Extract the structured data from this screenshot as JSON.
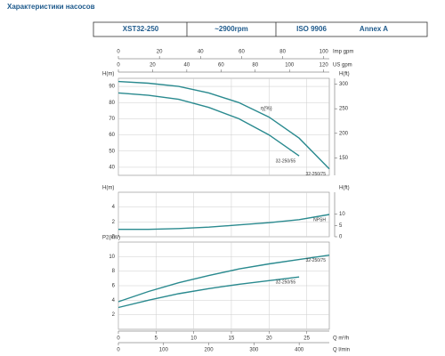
{
  "header": {
    "title": "Характеристики насосов",
    "model": "XST32-250",
    "speed": "~2900rpm",
    "standard": "ISO 9906",
    "annex": "Annex A"
  },
  "q_axes": [
    {
      "label": "Imp gpm",
      "lim": [
        0,
        102.7
      ],
      "ticks": [
        0,
        20,
        40,
        60,
        80,
        100
      ]
    },
    {
      "label": "US gpm",
      "lim": [
        0,
        123.3
      ],
      "ticks": [
        0,
        20,
        40,
        60,
        80,
        100,
        120
      ]
    },
    {
      "label": "Q m³/h",
      "lim": [
        0,
        28
      ],
      "ticks": [
        0,
        5,
        10,
        15,
        20,
        25
      ]
    },
    {
      "label": "Q l/min",
      "lim": [
        0,
        466.7
      ],
      "ticks": [
        0,
        100,
        200,
        300,
        400
      ]
    }
  ],
  "chart_data": [
    {
      "type": "line",
      "ylabel": "H(m)",
      "ylim": [
        35,
        95
      ],
      "yticks": [
        40,
        50,
        60,
        70,
        80,
        90
      ],
      "y2label": "H(ft)",
      "y2lim": [
        114.8,
        311.7
      ],
      "y2ticks": [
        150,
        200,
        250,
        300
      ],
      "annotation": "η(%)",
      "x": [
        0,
        4,
        8,
        12,
        16,
        20,
        24,
        28
      ],
      "series": [
        {
          "name": "32-250/75",
          "color": "#2a8a8f",
          "values": [
            93,
            92,
            90,
            86,
            80,
            71,
            58,
            39
          ]
        },
        {
          "name": "32-250/55",
          "color": "#2a8a8f",
          "values": [
            86,
            84.5,
            82,
            77,
            70,
            60,
            47,
            null
          ]
        }
      ]
    },
    {
      "type": "line",
      "ylabel": "H(m)",
      "ylim": [
        0,
        6
      ],
      "yticks": [
        0,
        2,
        4
      ],
      "y2label": "H(ft)",
      "y2lim": [
        0,
        19.7
      ],
      "y2ticks": [
        0,
        5,
        10
      ],
      "x": [
        0,
        4,
        8,
        12,
        16,
        20,
        24,
        28
      ],
      "series": [
        {
          "name": "NPSH",
          "color": "#2a8a8f",
          "values": [
            1,
            1,
            1.1,
            1.3,
            1.6,
            1.9,
            2.3,
            3
          ]
        }
      ]
    },
    {
      "type": "line",
      "ylabel": "P2(kW)",
      "ylim": [
        0,
        12
      ],
      "yticks": [
        2,
        4,
        6,
        8,
        10
      ],
      "x": [
        0,
        4,
        8,
        12,
        16,
        20,
        24,
        28
      ],
      "series": [
        {
          "name": "32-250/75",
          "color": "#2a8a8f",
          "values": [
            3.8,
            5.2,
            6.4,
            7.4,
            8.3,
            9,
            9.6,
            10.2
          ]
        },
        {
          "name": "32-250/55",
          "color": "#2a8a8f",
          "values": [
            3,
            4,
            4.9,
            5.6,
            6.2,
            6.7,
            7.2,
            null
          ]
        }
      ]
    }
  ]
}
